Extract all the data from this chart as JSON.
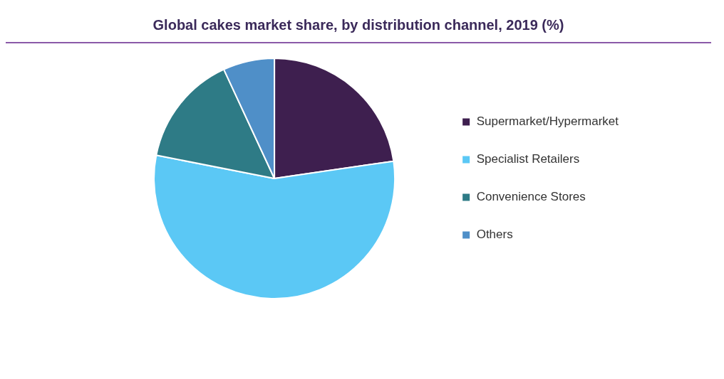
{
  "chart_data": {
    "type": "pie",
    "title": "Global cakes market share, by distribution channel, 2019 (%)",
    "categories": [
      "Supermarket/Hypermarket",
      "Specialist Retailers",
      "Convenience Stores",
      "Others"
    ],
    "values": [
      22.7,
      55.4,
      15.0,
      6.9
    ],
    "colors": [
      "#3e1f4f",
      "#5bc8f5",
      "#2e7b86",
      "#4f8fc8"
    ],
    "legend": "right"
  }
}
